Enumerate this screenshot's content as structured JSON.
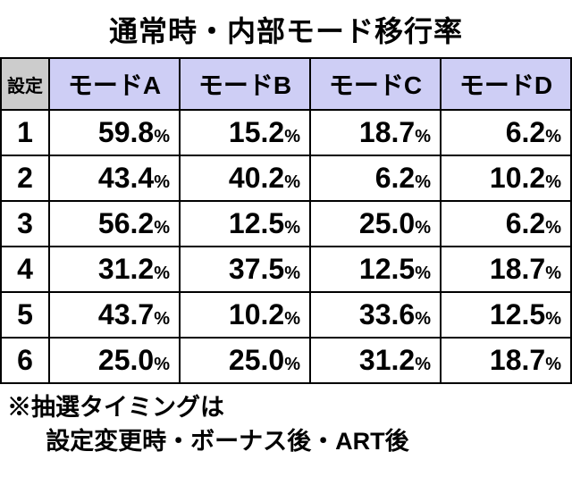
{
  "title": "通常時・内部モード移行率",
  "headers": {
    "settei": "設定",
    "modes": [
      "モードA",
      "モードB",
      "モードC",
      "モードD"
    ]
  },
  "rows": [
    {
      "label": "1",
      "values": [
        "59.8",
        "15.2",
        "18.7",
        "6.2"
      ]
    },
    {
      "label": "2",
      "values": [
        "43.4",
        "40.2",
        "6.2",
        "10.2"
      ]
    },
    {
      "label": "3",
      "values": [
        "56.2",
        "12.5",
        "25.0",
        "6.2"
      ]
    },
    {
      "label": "4",
      "values": [
        "31.2",
        "37.5",
        "12.5",
        "18.7"
      ]
    },
    {
      "label": "5",
      "values": [
        "43.7",
        "10.2",
        "33.6",
        "12.5"
      ]
    },
    {
      "label": "6",
      "values": [
        "25.0",
        "25.0",
        "31.2",
        "18.7"
      ]
    }
  ],
  "percent_symbol": "%",
  "footnote": {
    "line1": "※抽選タイミングは",
    "line2": "設定変更時・ボーナス後・ART後"
  },
  "colors": {
    "background": "#000000",
    "cell_bg": "#ffffff",
    "border": "#000000",
    "header_settei_bg": "#cccccc",
    "header_mode_bg": "#cecef5",
    "text": "#000000"
  }
}
